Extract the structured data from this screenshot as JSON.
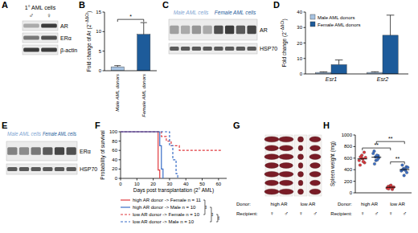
{
  "chart_data": [
    {
      "type": "blot",
      "label": "A",
      "title": "1° AML cells",
      "lanes": [
        "♂",
        "♀"
      ],
      "rows": [
        {
          "name": "AR",
          "bands": [
            0.3,
            0.85
          ]
        },
        {
          "name": "ERα",
          "bands": [
            0.55,
            0.75
          ]
        },
        {
          "name": "β-actin",
          "bands": [
            0.85,
            0.85
          ]
        }
      ]
    },
    {
      "type": "bar",
      "label": "B",
      "categories": [
        "Male AML donors",
        "Female AML donors"
      ],
      "values": [
        1,
        9.3
      ],
      "errors": [
        0.3,
        3
      ],
      "colors": [
        "#a7c3e2",
        "#1d5b9a"
      ],
      "ylabel": [
        "Fold change of Ar (2",
        "−ΔΔCt",
        ")"
      ],
      "ylim": [
        0,
        15
      ],
      "yticks": [
        0,
        5,
        10,
        15
      ],
      "annotations": [
        {
          "text": "*",
          "from": 0,
          "to": 1
        }
      ]
    },
    {
      "type": "blot",
      "label": "C",
      "groups": [
        {
          "name": "Male AML cells",
          "color": "#7fa6d3",
          "lanes": 4
        },
        {
          "name": "Female AML cells",
          "color": "#1d5b9a",
          "lanes": 4
        }
      ],
      "rows": [
        {
          "name": "AR",
          "bands": [
            0.35,
            0.3,
            0.4,
            0.3,
            0.75,
            0.85,
            0.7,
            0.8
          ]
        },
        {
          "name": "HSP70",
          "bands": [
            0.7,
            0.7,
            0.7,
            0.7,
            0.7,
            0.7,
            0.7,
            0.7
          ]
        }
      ]
    },
    {
      "type": "bar",
      "label": "D",
      "categories": [
        "Esr1",
        "Esr2"
      ],
      "series": [
        {
          "name": "Male AML donors",
          "color": "#a7c3e2",
          "values": [
            1,
            1
          ],
          "errors": [
            0.3,
            0.4
          ]
        },
        {
          "name": "Female AML donors",
          "color": "#1d5b9a",
          "values": [
            6,
            25
          ],
          "errors": [
            3,
            13
          ]
        }
      ],
      "ylabel": [
        "Fold change (2",
        "−ΔΔCt",
        ")"
      ],
      "ylim": [
        0,
        40
      ],
      "yticks": [
        0,
        10,
        20,
        30,
        40
      ],
      "legend": "top-left"
    },
    {
      "type": "blot",
      "label": "E",
      "groups": [
        {
          "name": "Male AML cells",
          "color": "#7fa6d3",
          "lanes": 3
        },
        {
          "name": "Female AML cells",
          "color": "#1d5b9a",
          "lanes": 3
        }
      ],
      "rows": [
        {
          "name": "ERα",
          "bands": [
            0.5,
            0.45,
            0.55,
            0.7,
            0.8,
            0.75
          ]
        },
        {
          "name": "HSP70",
          "bands": [
            0.7,
            0.7,
            0.7,
            0.7,
            0.7,
            0.7
          ]
        }
      ]
    },
    {
      "type": "line",
      "label": "F",
      "xlabel": "Days post transplantation (2° AML)",
      "ylabel": "Probability of survival",
      "xlim": [
        0,
        65
      ],
      "xticks": [
        0,
        10,
        20,
        30,
        40,
        50,
        60
      ],
      "ylim": [
        0,
        100
      ],
      "yticks": [
        0,
        20,
        40,
        60,
        80,
        100
      ],
      "series": [
        {
          "name": "high AR donor -> Female n = 11",
          "color": "#e0393e",
          "line_style": "solid",
          "x": [
            0,
            23,
            23,
            24,
            24
          ],
          "values": [
            100,
            100,
            18,
            18,
            0
          ]
        },
        {
          "name": "high AR donor -> Male n = 10",
          "color": "#3b6fc7",
          "line_style": "solid",
          "x": [
            0,
            24,
            24,
            25,
            25,
            26,
            26
          ],
          "values": [
            100,
            100,
            70,
            70,
            20,
            20,
            0
          ]
        },
        {
          "name": "low AR donor -> Female n = 10",
          "color": "#e0393e",
          "line_style": "dashed",
          "x": [
            0,
            25,
            25,
            28,
            28,
            31,
            31,
            36,
            36,
            62
          ],
          "values": [
            100,
            100,
            90,
            90,
            80,
            80,
            70,
            70,
            60,
            60
          ]
        },
        {
          "name": "low AR donor -> Male n = 10",
          "color": "#3b6fc7",
          "line_style": "dashed",
          "x": [
            0,
            30,
            30,
            32,
            32,
            34,
            34,
            35,
            35
          ],
          "values": [
            100,
            100,
            70,
            70,
            40,
            40,
            10,
            10,
            0
          ]
        }
      ],
      "annotations": [
        {
          "text": "**",
          "from": 0,
          "to": 2
        },
        {
          "text": "**",
          "from": 1,
          "to": 3
        },
        {
          "text": "**",
          "from": 2,
          "to": 3
        }
      ]
    },
    {
      "type": "image",
      "label": "G",
      "row_labels": [
        "Donor:",
        "Recipient:"
      ],
      "donors": [
        "high AR",
        "low AR"
      ],
      "recipients": [
        "♀",
        "♂",
        "♀",
        "♂"
      ]
    },
    {
      "type": "scatter",
      "label": "H",
      "ylabel": "Spleen weight (mg)",
      "ylim": [
        0,
        1000
      ],
      "yticks": [
        0,
        200,
        400,
        600,
        800,
        1000
      ],
      "row_labels": [
        "Donor:",
        "Recipient:"
      ],
      "donors": [
        "high AR",
        "low AR"
      ],
      "recipients": [
        "♀",
        "♂",
        "♀",
        "♂"
      ],
      "series": [
        {
          "color": "#e0393e",
          "values": [
            560,
            600,
            650,
            700,
            520,
            480,
            620,
            590,
            540,
            610
          ]
        },
        {
          "color": "#3b6fc7",
          "values": [
            680,
            620,
            560,
            640,
            600,
            720,
            500,
            650,
            570
          ]
        },
        {
          "color": "#e0393e",
          "values": [
            80,
            100,
            120,
            60,
            90,
            110,
            70,
            130,
            95,
            100
          ]
        },
        {
          "color": "#3b6fc7",
          "values": [
            380,
            420,
            300,
            450,
            350,
            480,
            400,
            410,
            390,
            440
          ]
        }
      ],
      "annotations": [
        {
          "text": "**",
          "from": 2,
          "to": 3
        },
        {
          "text": "**",
          "from": 0,
          "to": 2
        },
        {
          "text": "**",
          "from": 1,
          "to": 3
        }
      ]
    }
  ]
}
